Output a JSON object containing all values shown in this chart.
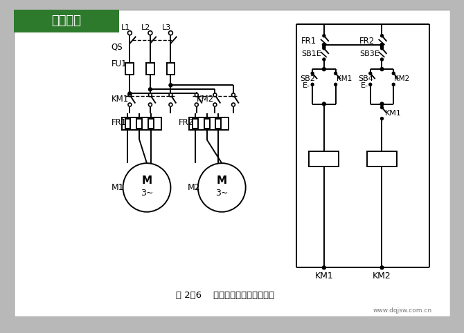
{
  "bg_color": "#b8b8b8",
  "panel_color": "#ffffff",
  "title_bg": "#2d7a2d",
  "title_text": "基库电气",
  "title_color": "#ffffff",
  "caption": "图 2－6    按顺序工作时的控制线路",
  "watermark": "www.dqjsw.com.cn",
  "line_color": "#000000",
  "line_width": 1.4,
  "font_size": 8.5
}
